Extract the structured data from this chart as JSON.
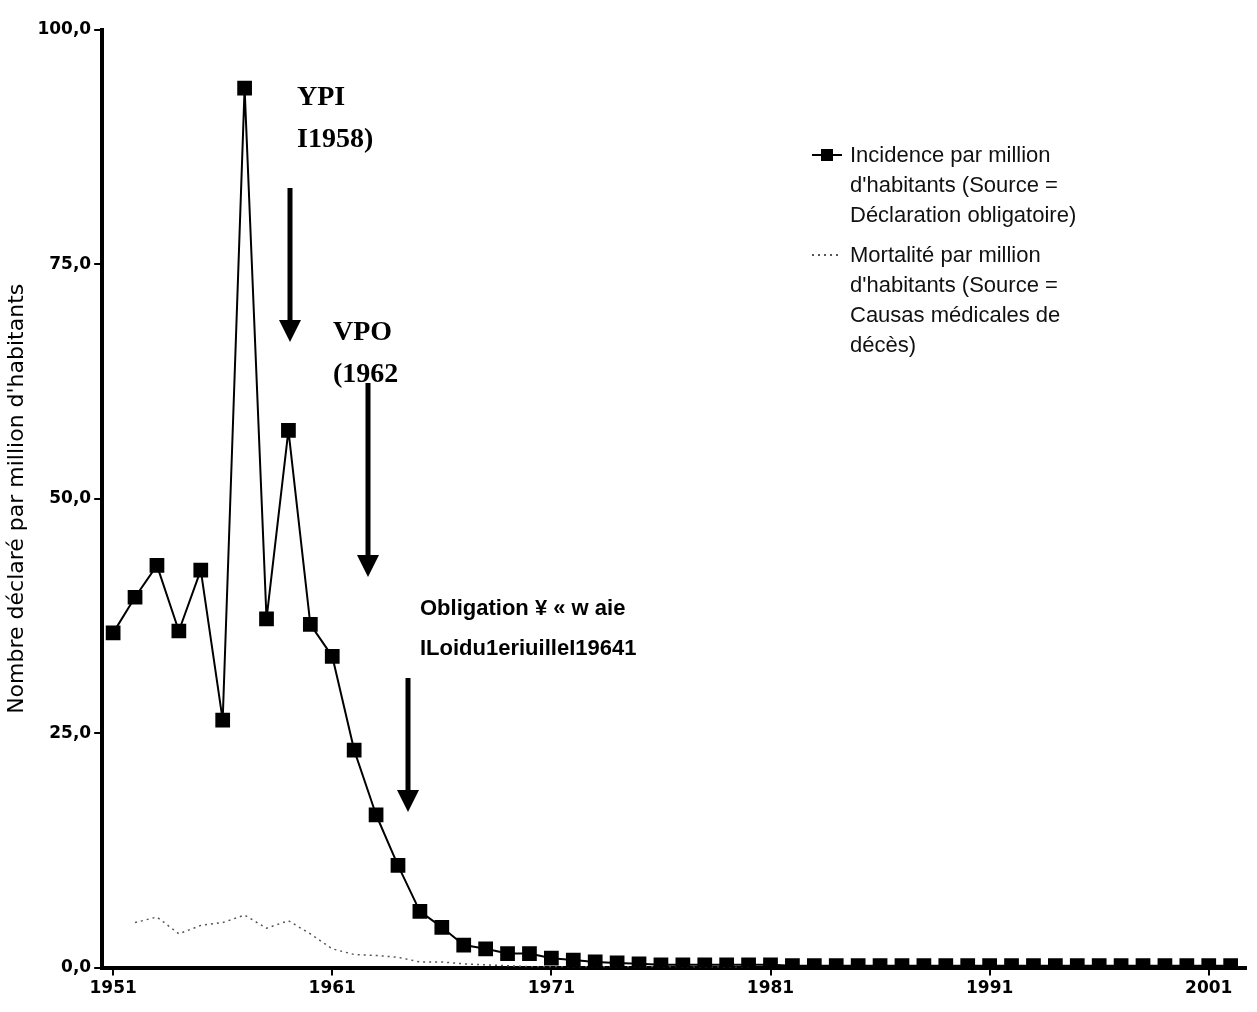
{
  "chart_data": {
    "type": "line",
    "ylabel": "Nombre déclaré par million d'habitants",
    "xlim": [
      1950.5,
      2002.7
    ],
    "xticks": [
      1951,
      1961,
      1971,
      1981,
      1991,
      2001
    ],
    "ylim": [
      0,
      100
    ],
    "yticks": [
      {
        "value": 0,
        "label": "0,0"
      },
      {
        "value": 25,
        "label": "25,0"
      },
      {
        "value": 50,
        "label": "50,0"
      },
      {
        "value": 75,
        "label": "75,0"
      },
      {
        "value": 100,
        "label": "100,0"
      }
    ],
    "grid": false,
    "legend": "top right",
    "series": [
      {
        "name": "Incidence par million d'habitants (Source = Déclaration obligatoire)",
        "color": "#000000",
        "marker": "square",
        "line_style": "solid",
        "x": [
          1951,
          1952,
          1953,
          1954,
          1955,
          1956,
          1957,
          1958,
          1959,
          1960,
          1961,
          1962,
          1963,
          1964,
          1965,
          1966,
          1967,
          1968,
          1969,
          1970,
          1971,
          1972,
          1973,
          1974,
          1975,
          1976,
          1977,
          1978,
          1979,
          1980,
          1981,
          1982,
          1983,
          1984,
          1985,
          1986,
          1987,
          1988,
          1989,
          1990,
          1991,
          1992,
          1993,
          1994,
          1995,
          1996,
          1997,
          1998,
          1999,
          2000,
          2001,
          2002
        ],
        "values": [
          35.7,
          39.5,
          42.9,
          35.9,
          42.4,
          26.4,
          93.8,
          37.2,
          57.3,
          36.6,
          33.2,
          23.2,
          16.3,
          10.9,
          6.0,
          4.3,
          2.4,
          2.0,
          1.5,
          1.5,
          1.0,
          0.8,
          0.6,
          0.5,
          0.4,
          0.3,
          0.3,
          0.3,
          0.3,
          0.3,
          0.3,
          0.2,
          0.2,
          0.2,
          0.2,
          0.2,
          0.2,
          0.2,
          0.2,
          0.2,
          0.2,
          0.2,
          0.2,
          0.2,
          0.2,
          0.2,
          0.2,
          0.2,
          0.2,
          0.2,
          0.2,
          0.2
        ]
      },
      {
        "name": "Mortalité par million d'habitants  (Source = Causas médicales de décès)",
        "color": "#555555",
        "marker": "none",
        "line_style": "dotted",
        "x": [
          1952,
          1953,
          1954,
          1955,
          1956,
          1957,
          1958,
          1959,
          1960,
          1961,
          1962,
          1963,
          1964,
          1965,
          1966,
          1967,
          1968,
          1969,
          1970,
          1972,
          1975,
          1980
        ],
        "values": [
          4.8,
          5.4,
          3.6,
          4.5,
          4.8,
          5.6,
          4.2,
          5.0,
          3.6,
          2.0,
          1.4,
          1.3,
          1.1,
          0.6,
          0.6,
          0.4,
          0.3,
          0.2,
          0.1,
          0.1,
          0.1,
          0.0
        ]
      }
    ],
    "annotations": [
      "YPI\nI1958)",
      "VPO\n(1962",
      "Obligation ¥ « w aie\nILoidu1eriuilleI19641"
    ]
  }
}
